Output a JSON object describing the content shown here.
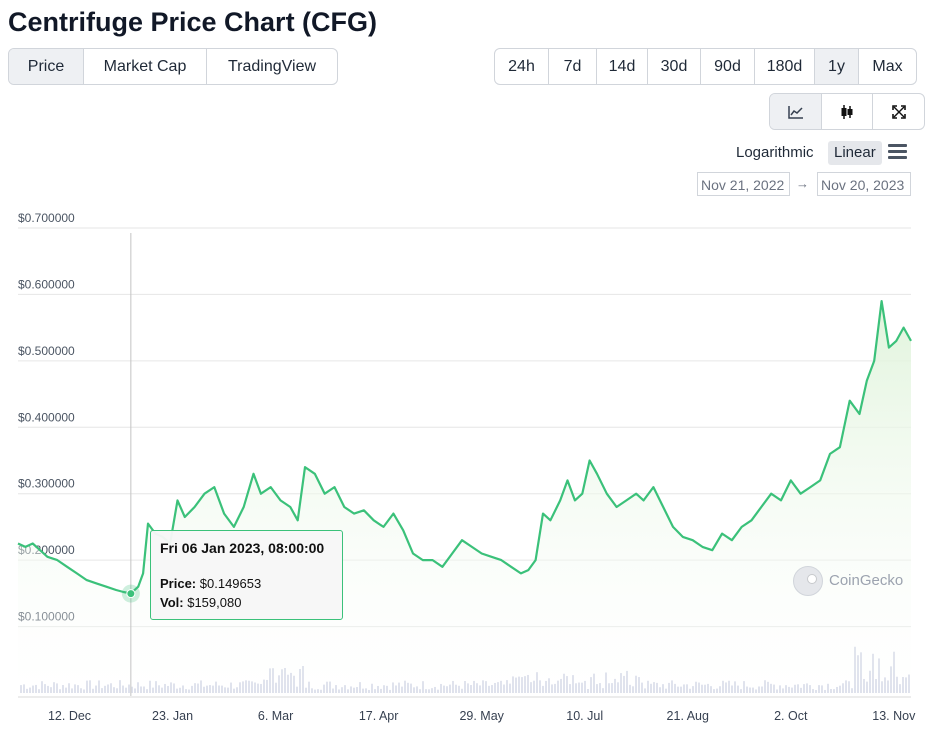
{
  "page": {
    "title": "Centrifuge Price Chart (CFG)"
  },
  "view_tabs": [
    {
      "label": "Price",
      "active": true
    },
    {
      "label": "Market Cap",
      "active": false
    },
    {
      "label": "TradingView",
      "active": false
    }
  ],
  "range_tabs": [
    {
      "label": "24h",
      "active": false
    },
    {
      "label": "7d",
      "active": false
    },
    {
      "label": "14d",
      "active": false
    },
    {
      "label": "30d",
      "active": false
    },
    {
      "label": "90d",
      "active": false
    },
    {
      "label": "180d",
      "active": false
    },
    {
      "label": "1y",
      "active": true
    },
    {
      "label": "Max",
      "active": false
    }
  ],
  "chart_type_tabs": [
    {
      "icon": "line-chart-icon",
      "active": true
    },
    {
      "icon": "candlestick-icon",
      "active": false
    },
    {
      "icon": "fullscreen-icon",
      "active": false
    }
  ],
  "scale_options": {
    "log_label": "Logarithmic",
    "linear_label": "Linear",
    "selected": "Linear",
    "menu_icon": "hamburger-menu-icon"
  },
  "date_range": {
    "from": "Nov 21, 2022",
    "arrow": "→",
    "to": "Nov 20, 2023"
  },
  "tooltip": {
    "date": "Fri 06 Jan 2023, 08:00:00",
    "price_label": "Price:",
    "price_value": "$0.149653",
    "vol_label": "Vol:",
    "vol_value": "$159,080"
  },
  "watermark": {
    "text": "CoinGecko",
    "icon": "coingecko-logo-icon"
  },
  "colors": {
    "line": "#3bc17a",
    "area_top": "#dff3da",
    "grid": "#e6e6e6",
    "volume": "#c9cfe0"
  },
  "chart_data": {
    "type": "area",
    "title": "",
    "xlabel": "",
    "ylabel": "",
    "ylim": [
      0,
      0.7
    ],
    "y_ticks": [
      0.1,
      0.2,
      0.3,
      0.4,
      0.5,
      0.6,
      0.7
    ],
    "y_tick_labels": [
      "$0.100000",
      "$0.200000",
      "$0.300000",
      "$0.400000",
      "$0.500000",
      "$0.600000",
      "$0.700000"
    ],
    "x_range": [
      "2022-11-21",
      "2023-11-20"
    ],
    "x_ticks": [
      {
        "date": "2022-12-12",
        "label": "12. Dec"
      },
      {
        "date": "2023-01-23",
        "label": "23. Jan"
      },
      {
        "date": "2023-03-06",
        "label": "6. Mar"
      },
      {
        "date": "2023-04-17",
        "label": "17. Apr"
      },
      {
        "date": "2023-05-29",
        "label": "29. May"
      },
      {
        "date": "2023-07-10",
        "label": "10. Jul"
      },
      {
        "date": "2023-08-21",
        "label": "21. Aug"
      },
      {
        "date": "2023-10-02",
        "label": "2. Oct"
      },
      {
        "date": "2023-11-13",
        "label": "13. Nov"
      }
    ],
    "grid": true,
    "highlight": {
      "date": "2023-01-06",
      "price": 0.149653
    },
    "series": [
      {
        "points": [
          [
            "2022-11-21",
            0.225
          ],
          [
            "2022-11-24",
            0.22
          ],
          [
            "2022-11-27",
            0.225
          ],
          [
            "2022-11-30",
            0.215
          ],
          [
            "2022-12-03",
            0.205
          ],
          [
            "2022-12-07",
            0.2
          ],
          [
            "2022-12-11",
            0.19
          ],
          [
            "2022-12-15",
            0.18
          ],
          [
            "2022-12-19",
            0.17
          ],
          [
            "2022-12-23",
            0.165
          ],
          [
            "2022-12-27",
            0.16
          ],
          [
            "2022-12-31",
            0.155
          ],
          [
            "2023-01-03",
            0.152
          ],
          [
            "2023-01-06",
            0.15
          ],
          [
            "2023-01-09",
            0.16
          ],
          [
            "2023-01-11",
            0.18
          ],
          [
            "2023-01-13",
            0.255
          ],
          [
            "2023-01-16",
            0.24
          ],
          [
            "2023-01-19",
            0.235
          ],
          [
            "2023-01-22",
            0.225
          ],
          [
            "2023-01-25",
            0.29
          ],
          [
            "2023-01-28",
            0.265
          ],
          [
            "2023-02-01",
            0.28
          ],
          [
            "2023-02-05",
            0.3
          ],
          [
            "2023-02-09",
            0.31
          ],
          [
            "2023-02-13",
            0.27
          ],
          [
            "2023-02-17",
            0.25
          ],
          [
            "2023-02-21",
            0.28
          ],
          [
            "2023-02-25",
            0.33
          ],
          [
            "2023-02-28",
            0.3
          ],
          [
            "2023-03-04",
            0.31
          ],
          [
            "2023-03-08",
            0.29
          ],
          [
            "2023-03-12",
            0.28
          ],
          [
            "2023-03-15",
            0.26
          ],
          [
            "2023-03-18",
            0.34
          ],
          [
            "2023-03-22",
            0.33
          ],
          [
            "2023-03-26",
            0.3
          ],
          [
            "2023-03-30",
            0.31
          ],
          [
            "2023-04-03",
            0.28
          ],
          [
            "2023-04-07",
            0.27
          ],
          [
            "2023-04-11",
            0.275
          ],
          [
            "2023-04-15",
            0.26
          ],
          [
            "2023-04-19",
            0.25
          ],
          [
            "2023-04-23",
            0.27
          ],
          [
            "2023-04-27",
            0.245
          ],
          [
            "2023-05-01",
            0.21
          ],
          [
            "2023-05-05",
            0.2
          ],
          [
            "2023-05-09",
            0.2
          ],
          [
            "2023-05-13",
            0.19
          ],
          [
            "2023-05-17",
            0.21
          ],
          [
            "2023-05-21",
            0.23
          ],
          [
            "2023-05-25",
            0.22
          ],
          [
            "2023-05-29",
            0.21
          ],
          [
            "2023-06-02",
            0.205
          ],
          [
            "2023-06-06",
            0.2
          ],
          [
            "2023-06-10",
            0.19
          ],
          [
            "2023-06-14",
            0.18
          ],
          [
            "2023-06-17",
            0.185
          ],
          [
            "2023-06-20",
            0.2
          ],
          [
            "2023-06-23",
            0.27
          ],
          [
            "2023-06-26",
            0.26
          ],
          [
            "2023-06-30",
            0.29
          ],
          [
            "2023-07-03",
            0.32
          ],
          [
            "2023-07-06",
            0.29
          ],
          [
            "2023-07-09",
            0.3
          ],
          [
            "2023-07-12",
            0.35
          ],
          [
            "2023-07-15",
            0.33
          ],
          [
            "2023-07-19",
            0.3
          ],
          [
            "2023-07-23",
            0.28
          ],
          [
            "2023-07-27",
            0.29
          ],
          [
            "2023-07-31",
            0.3
          ],
          [
            "2023-08-03",
            0.29
          ],
          [
            "2023-08-07",
            0.31
          ],
          [
            "2023-08-11",
            0.28
          ],
          [
            "2023-08-15",
            0.25
          ],
          [
            "2023-08-19",
            0.235
          ],
          [
            "2023-08-23",
            0.23
          ],
          [
            "2023-08-27",
            0.22
          ],
          [
            "2023-08-31",
            0.215
          ],
          [
            "2023-09-04",
            0.24
          ],
          [
            "2023-09-08",
            0.23
          ],
          [
            "2023-09-12",
            0.25
          ],
          [
            "2023-09-16",
            0.26
          ],
          [
            "2023-09-20",
            0.28
          ],
          [
            "2023-09-24",
            0.3
          ],
          [
            "2023-09-28",
            0.29
          ],
          [
            "2023-10-02",
            0.32
          ],
          [
            "2023-10-06",
            0.3
          ],
          [
            "2023-10-10",
            0.31
          ],
          [
            "2023-10-14",
            0.32
          ],
          [
            "2023-10-18",
            0.36
          ],
          [
            "2023-10-22",
            0.37
          ],
          [
            "2023-10-26",
            0.44
          ],
          [
            "2023-10-30",
            0.42
          ],
          [
            "2023-11-02",
            0.47
          ],
          [
            "2023-11-05",
            0.5
          ],
          [
            "2023-11-08",
            0.59
          ],
          [
            "2023-11-11",
            0.52
          ],
          [
            "2023-11-14",
            0.53
          ],
          [
            "2023-11-17",
            0.55
          ],
          [
            "2023-11-20",
            0.53
          ]
        ]
      }
    ]
  }
}
